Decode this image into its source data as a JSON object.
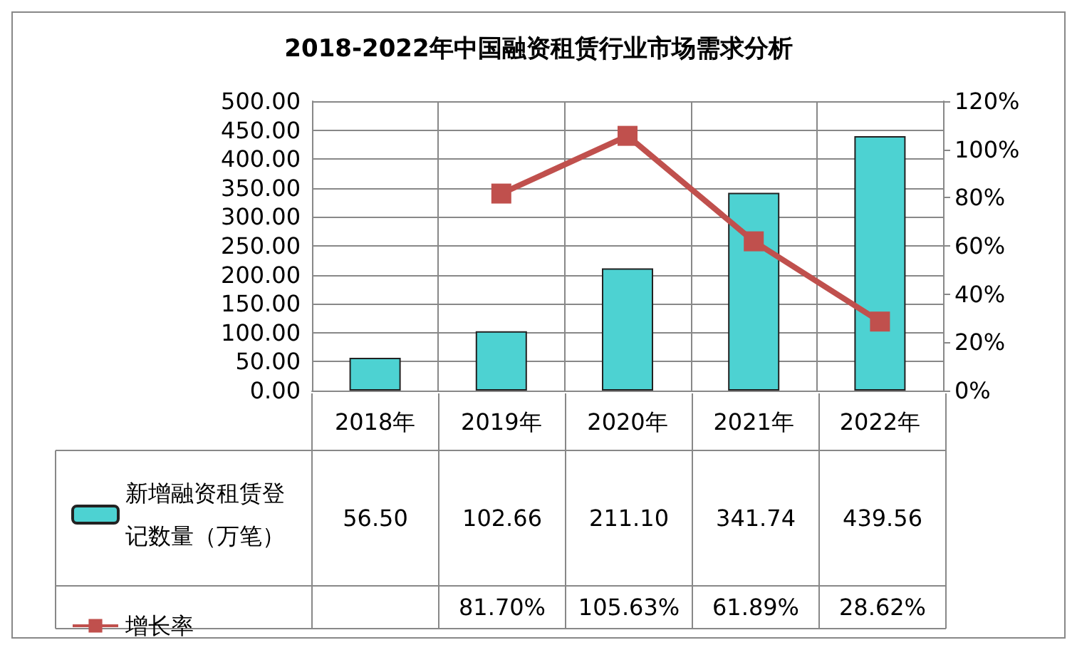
{
  "chart_data": {
    "type": "bar",
    "title": "2018-2022年中国融资租赁行业市场需求分析",
    "categories": [
      "2018年",
      "2019年",
      "2020年",
      "2021年",
      "2022年"
    ],
    "series": [
      {
        "name": "新增融资租赁登记数量（万笔）",
        "color": "#4dd2d2",
        "values": [
          56.5,
          102.66,
          211.1,
          341.74,
          439.56
        ],
        "value_labels": [
          "56.50",
          "102.66",
          "211.10",
          "341.74",
          "439.56"
        ]
      },
      {
        "name": "增长率",
        "type": "line",
        "axis": "y2",
        "color": "#c0504d",
        "marker": "square",
        "values": [
          null,
          81.7,
          105.63,
          61.89,
          28.62
        ],
        "value_labels": [
          null,
          "81.70%",
          "105.63%",
          "61.89%",
          "28.62%"
        ]
      }
    ],
    "ylim": [
      0,
      500
    ],
    "yticks": [
      {
        "value": 0,
        "label": "0.00"
      },
      {
        "value": 50,
        "label": "50.00"
      },
      {
        "value": 100,
        "label": "100.00"
      },
      {
        "value": 150,
        "label": "150.00"
      },
      {
        "value": 200,
        "label": "200.00"
      },
      {
        "value": 250,
        "label": "250.00"
      },
      {
        "value": 300,
        "label": "300.00"
      },
      {
        "value": 350,
        "label": "350.00"
      },
      {
        "value": 400,
        "label": "400.00"
      },
      {
        "value": 450,
        "label": "450.00"
      },
      {
        "value": 500,
        "label": "500.00"
      }
    ],
    "y2lim": [
      0,
      120
    ],
    "y2ticks": [
      {
        "value": 0,
        "label": "0%"
      },
      {
        "value": 20,
        "label": "20%"
      },
      {
        "value": 40,
        "label": "40%"
      },
      {
        "value": 60,
        "label": "60%"
      },
      {
        "value": 80,
        "label": "80%"
      },
      {
        "value": 100,
        "label": "100%"
      },
      {
        "value": 120,
        "label": "120%"
      }
    ],
    "grid": true,
    "legend": "bottom"
  }
}
